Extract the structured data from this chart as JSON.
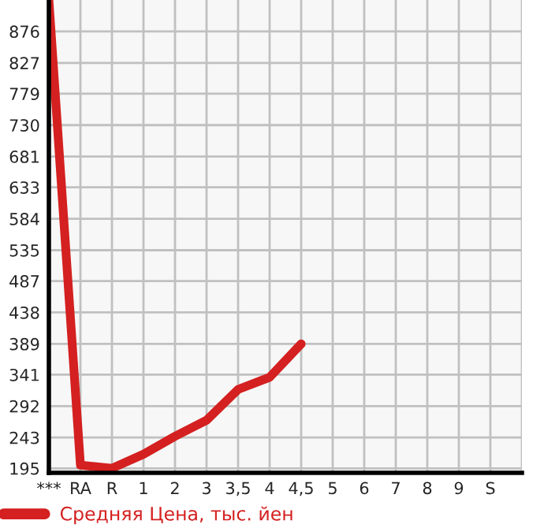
{
  "chart_data": {
    "type": "line",
    "categories": [
      "***",
      "RA",
      "R",
      "1",
      "2",
      "3",
      "3,5",
      "4",
      "4,5",
      "5",
      "6",
      "7",
      "8",
      "9",
      "S"
    ],
    "series": [
      {
        "name": "Средняя Цена, тыс. йен",
        "color": "#d42020",
        "values": [
          925,
          200,
          195,
          217,
          245,
          270,
          318,
          337,
          389,
          null,
          null,
          null,
          null,
          null,
          null
        ]
      }
    ],
    "ylim": [
      188,
      925
    ],
    "yticks": [
      195,
      243,
      292,
      341,
      389,
      438,
      487,
      535,
      584,
      633,
      681,
      730,
      779,
      827,
      876
    ],
    "grid": true,
    "legend": "bottom",
    "marker": "none",
    "line_style": "solid"
  }
}
